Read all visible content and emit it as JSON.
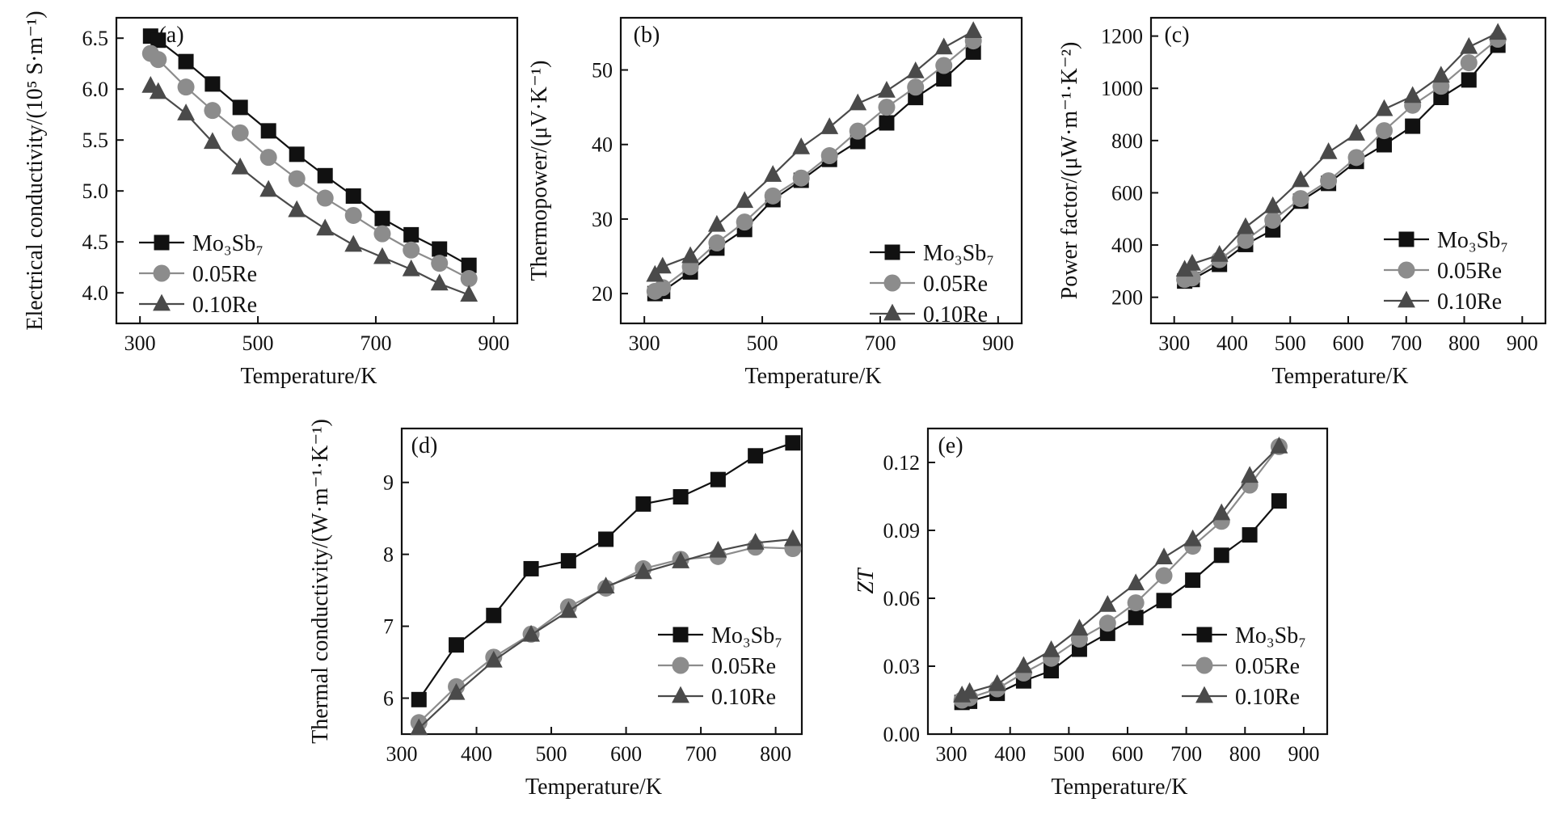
{
  "figure": {
    "panels": [
      {
        "id": "a",
        "tag": "(a)",
        "chart_data": {
          "type": "line",
          "xlabel": "Temperature/K",
          "ylabel": "Electrical conductivity/(10⁵ S·m⁻¹)",
          "xlim": [
            260,
            940
          ],
          "ylim": [
            3.7,
            6.7
          ],
          "xticks": [
            300,
            500,
            700,
            900
          ],
          "yticks": [
            4.0,
            4.5,
            5.0,
            5.5,
            6.0,
            6.5
          ],
          "ytick_decimals": 1,
          "grid": false,
          "legend_position": "lower-left",
          "series": [
            {
              "name": "Mo₃Sb₇",
              "marker": "square",
              "color": "#111111",
              "x": [
                318,
                331,
                378,
                423,
                470,
                518,
                566,
                614,
                662,
                711,
                760,
                808,
                858
              ],
              "y": [
                6.52,
                6.48,
                6.27,
                6.05,
                5.82,
                5.59,
                5.36,
                5.15,
                4.95,
                4.73,
                4.57,
                4.43,
                4.27
              ]
            },
            {
              "name": "0.05Re",
              "marker": "circle",
              "color": "#8c8c8c",
              "x": [
                318,
                331,
                378,
                423,
                470,
                518,
                566,
                614,
                662,
                711,
                760,
                808,
                858
              ],
              "y": [
                6.35,
                6.29,
                6.02,
                5.79,
                5.57,
                5.33,
                5.12,
                4.93,
                4.76,
                4.58,
                4.42,
                4.29,
                4.14
              ]
            },
            {
              "name": "0.10Re",
              "marker": "triangle",
              "color": "#4a4a4a",
              "x": [
                318,
                331,
                378,
                423,
                470,
                518,
                566,
                614,
                662,
                711,
                760,
                808,
                858
              ],
              "y": [
                6.03,
                5.97,
                5.76,
                5.48,
                5.23,
                5.01,
                4.81,
                4.63,
                4.47,
                4.35,
                4.23,
                4.09,
                3.98
              ]
            }
          ]
        }
      },
      {
        "id": "b",
        "tag": "(b)",
        "chart_data": {
          "type": "line",
          "xlabel": "Temperature/K",
          "ylabel": "Thermopower/(μV·K⁻¹)",
          "xlim": [
            260,
            940
          ],
          "ylim": [
            16,
            57
          ],
          "xticks": [
            300,
            500,
            700,
            900
          ],
          "yticks": [
            20,
            30,
            40,
            50
          ],
          "ytick_decimals": 0,
          "grid": false,
          "legend_position": "lower-right",
          "series": [
            {
              "name": "Mo₃Sb₇",
              "marker": "square",
              "color": "#111111",
              "x": [
                318,
                331,
                378,
                423,
                470,
                518,
                566,
                614,
                662,
                711,
                760,
                808,
                858
              ],
              "y": [
                20.0,
                20.3,
                22.9,
                26.1,
                28.6,
                32.6,
                35.2,
                38.0,
                40.4,
                42.9,
                46.3,
                48.8,
                52.4
              ]
            },
            {
              "name": "0.05Re",
              "marker": "circle",
              "color": "#8c8c8c",
              "x": [
                318,
                331,
                378,
                423,
                470,
                518,
                566,
                614,
                662,
                711,
                760,
                808,
                858
              ],
              "y": [
                20.3,
                20.8,
                23.6,
                26.8,
                29.6,
                33.1,
                35.5,
                38.5,
                41.8,
                45.0,
                47.7,
                50.6,
                53.9
              ]
            },
            {
              "name": "0.10Re",
              "marker": "triangle",
              "color": "#4a4a4a",
              "x": [
                318,
                331,
                378,
                423,
                470,
                518,
                566,
                614,
                662,
                711,
                760,
                808,
                858
              ],
              "y": [
                22.5,
                23.6,
                25.0,
                29.2,
                32.4,
                35.9,
                39.6,
                42.3,
                45.5,
                47.2,
                49.8,
                53.0,
                55.2
              ]
            }
          ]
        }
      },
      {
        "id": "c",
        "tag": "(c)",
        "chart_data": {
          "type": "line",
          "xlabel": "Temperature/K",
          "ylabel": "Power factor/(μW·m⁻¹·K⁻²)",
          "xlim": [
            260,
            940
          ],
          "ylim": [
            100,
            1270
          ],
          "xticks": [
            300,
            400,
            500,
            600,
            700,
            800,
            900
          ],
          "yticks": [
            200,
            400,
            600,
            800,
            1000,
            1200
          ],
          "ytick_decimals": 0,
          "grid": false,
          "legend_position": "lower-right",
          "series": [
            {
              "name": "Mo₃Sb₇",
              "marker": "square",
              "color": "#111111",
              "x": [
                318,
                331,
                378,
                423,
                470,
                518,
                566,
                614,
                662,
                711,
                760,
                808,
                858
              ],
              "y": [
                262,
                268,
                326,
                402,
                458,
                568,
                636,
                720,
                784,
                855,
                965,
                1032,
                1165
              ]
            },
            {
              "name": "0.05Re",
              "marker": "circle",
              "color": "#8c8c8c",
              "x": [
                318,
                331,
                378,
                423,
                470,
                518,
                566,
                614,
                662,
                711,
                760,
                808,
                858
              ],
              "y": [
                268,
                274,
                344,
                418,
                495,
                578,
                646,
                735,
                838,
                935,
                1008,
                1098,
                1188
              ]
            },
            {
              "name": "0.10Re",
              "marker": "triangle",
              "color": "#4a4a4a",
              "x": [
                318,
                331,
                378,
                423,
                470,
                518,
                566,
                614,
                662,
                711,
                760,
                808,
                858
              ],
              "y": [
                305,
                328,
                362,
                468,
                548,
                648,
                755,
                826,
                920,
                970,
                1048,
                1158,
                1212
              ]
            }
          ]
        }
      },
      {
        "id": "d",
        "tag": "(d)",
        "chart_data": {
          "type": "line",
          "xlabel": "Temperature/K",
          "ylabel": "Thermal conductivity/(W·m⁻¹·K⁻¹)",
          "xlim": [
            300,
            835
          ],
          "ylim": [
            5.5,
            9.75
          ],
          "xticks": [
            300,
            400,
            500,
            600,
            700,
            800
          ],
          "yticks": [
            6,
            7,
            8,
            9
          ],
          "ytick_decimals": 0,
          "grid": false,
          "legend_position": "lower-right",
          "series": [
            {
              "name": "Mo₃Sb₇",
              "marker": "square",
              "color": "#111111",
              "x": [
                323,
                373,
                423,
                473,
                523,
                573,
                623,
                673,
                723,
                773,
                823
              ],
              "y": [
                5.98,
                6.74,
                7.15,
                7.8,
                7.91,
                8.21,
                8.7,
                8.8,
                9.04,
                9.37,
                9.55
              ]
            },
            {
              "name": "0.05Re",
              "marker": "circle",
              "color": "#8c8c8c",
              "x": [
                323,
                373,
                423,
                473,
                523,
                573,
                623,
                673,
                723,
                773,
                823
              ],
              "y": [
                5.66,
                6.16,
                6.57,
                6.89,
                7.27,
                7.53,
                7.8,
                7.93,
                7.97,
                8.1,
                8.08
              ]
            },
            {
              "name": "0.10Re",
              "marker": "triangle",
              "color": "#4a4a4a",
              "x": [
                323,
                373,
                423,
                473,
                523,
                573,
                623,
                673,
                723,
                773,
                823
              ],
              "y": [
                5.58,
                6.07,
                6.52,
                6.88,
                7.21,
                7.55,
                7.75,
                7.9,
                8.05,
                8.16,
                8.21
              ]
            }
          ]
        }
      },
      {
        "id": "e",
        "tag": "(e)",
        "chart_data": {
          "type": "line",
          "xlabel": "Temperature/K",
          "ylabel": "ZT",
          "xlim": [
            260,
            940
          ],
          "ylim": [
            0,
            0.135
          ],
          "xticks": [
            300,
            400,
            500,
            600,
            700,
            800,
            900
          ],
          "yticks": [
            0.0,
            0.03,
            0.06,
            0.09,
            0.12
          ],
          "ytick_decimals": 2,
          "grid": false,
          "legend_position": "lower-right",
          "series": [
            {
              "name": "Mo₃Sb₇",
              "marker": "square",
              "color": "#111111",
              "x": [
                318,
                331,
                378,
                423,
                470,
                518,
                566,
                614,
                662,
                711,
                760,
                808,
                858
              ],
              "y": [
                0.014,
                0.0145,
                0.018,
                0.0235,
                0.028,
                0.0375,
                0.0445,
                0.0515,
                0.059,
                0.068,
                0.079,
                0.088,
                0.103
              ]
            },
            {
              "name": "0.05Re",
              "marker": "circle",
              "color": "#8c8c8c",
              "x": [
                318,
                331,
                378,
                423,
                470,
                518,
                566,
                614,
                662,
                711,
                760,
                808,
                858
              ],
              "y": [
                0.015,
                0.016,
                0.02,
                0.027,
                0.0335,
                0.042,
                0.049,
                0.058,
                0.07,
                0.083,
                0.094,
                0.11,
                0.127
              ]
            },
            {
              "name": "0.10Re",
              "marker": "triangle",
              "color": "#4a4a4a",
              "x": [
                318,
                331,
                378,
                423,
                470,
                518,
                566,
                614,
                662,
                711,
                760,
                808,
                858
              ],
              "y": [
                0.017,
                0.0185,
                0.022,
                0.03,
                0.037,
                0.0465,
                0.057,
                0.0665,
                0.078,
                0.086,
                0.0975,
                0.114,
                0.127
              ]
            }
          ]
        }
      }
    ]
  }
}
